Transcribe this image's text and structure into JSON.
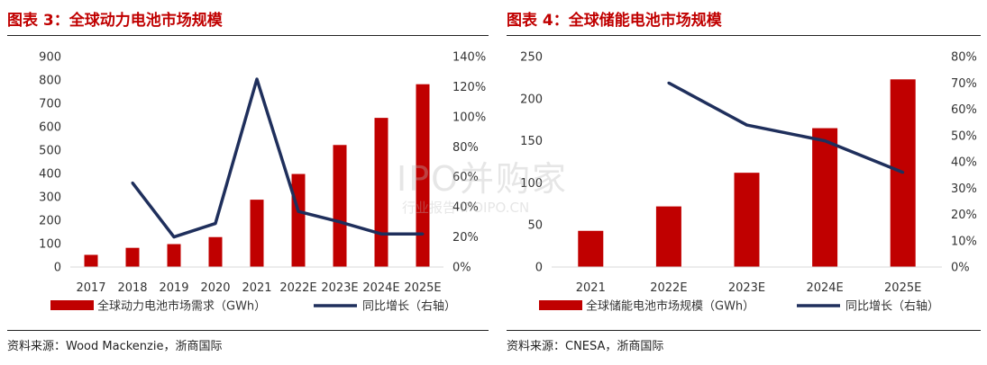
{
  "left": {
    "title": "图表 3：全球动力电池市场规模",
    "source": "资料来源：Wood Mackenzie，浙商国际",
    "legend_bar": "全球动力电池市场需求（GWh）",
    "legend_line": "同比增长（右轴）"
  },
  "right": {
    "title": "图表 4：全球储能电池市场规模",
    "source": "资料来源：CNESA，浙商国际",
    "legend_bar": "全球储能电池市场规模（GWh）",
    "legend_line": "同比增长（右轴）"
  },
  "watermark": {
    "brand": "IPO并购家",
    "sub": "行业报告 IPOIPO.CN"
  },
  "colors": {
    "bar": "#c00000",
    "line": "#1f2f5c",
    "title": "#c00000"
  },
  "chart_data": [
    {
      "type": "bar",
      "title": "图表 3：全球动力电池市场规模",
      "categories": [
        "2017",
        "2018",
        "2019",
        "2020",
        "2021",
        "2022E",
        "2023E",
        "2024E",
        "2025E"
      ],
      "series": [
        {
          "name": "全球动力电池市场需求（GWh）",
          "type": "bar",
          "axis": "left",
          "values": [
            52,
            82,
            98,
            128,
            288,
            398,
            522,
            638,
            782
          ]
        },
        {
          "name": "同比增长（右轴）",
          "type": "line",
          "axis": "right",
          "values": [
            null,
            0.56,
            0.2,
            0.29,
            1.25,
            0.37,
            0.3,
            0.22,
            0.22
          ]
        }
      ],
      "ylim": [
        0,
        900
      ],
      "yticks": [
        "0",
        "100",
        "200",
        "300",
        "400",
        "500",
        "600",
        "700",
        "800",
        "900"
      ],
      "y2lim": [
        0,
        1.4
      ],
      "y2ticks": [
        "0%",
        "20%",
        "40%",
        "60%",
        "80%",
        "100%",
        "120%",
        "140%"
      ],
      "grid": false,
      "legend": "bottom"
    },
    {
      "type": "bar",
      "title": "图表 4：全球储能电池市场规模",
      "categories": [
        "2021",
        "2022E",
        "2023E",
        "2024E",
        "2025E"
      ],
      "series": [
        {
          "name": "全球储能电池市场规模（GWh）",
          "type": "bar",
          "axis": "left",
          "values": [
            43,
            72,
            112,
            165,
            223
          ]
        },
        {
          "name": "同比增长（右轴）",
          "type": "line",
          "axis": "right",
          "values": [
            null,
            0.7,
            0.54,
            0.48,
            0.36
          ]
        }
      ],
      "ylim": [
        0,
        250
      ],
      "yticks": [
        "0",
        "50",
        "100",
        "150",
        "200",
        "250"
      ],
      "y2lim": [
        0,
        0.8
      ],
      "y2ticks": [
        "0%",
        "10%",
        "20%",
        "30%",
        "40%",
        "50%",
        "60%",
        "70%",
        "80%"
      ],
      "grid": false,
      "legend": "bottom"
    }
  ]
}
